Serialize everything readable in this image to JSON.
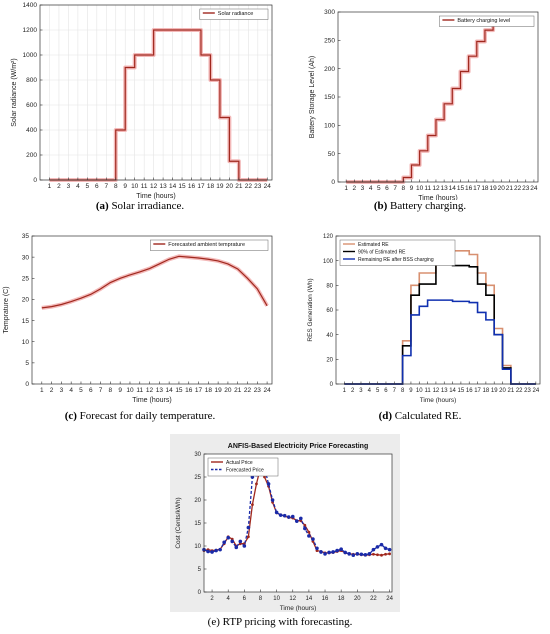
{
  "captions": [
    {
      "letter": "(a)",
      "text": "Solar irradiance."
    },
    {
      "letter": "(b)",
      "text": "Battery charging."
    },
    {
      "letter": "(c)",
      "text": "Forecast for daily temperature."
    },
    {
      "letter": "(d)",
      "text": "Calculated RE."
    },
    {
      "letter": "(e)",
      "text": "RTP pricing with forecasting."
    }
  ],
  "chart_data": [
    {
      "id": "a",
      "type": "line",
      "step": true,
      "title": "",
      "xlabel": "Time (hours)",
      "ylabel": "Solar radiance (W/m²)",
      "xlim": [
        0,
        24.5
      ],
      "ylim": [
        0,
        1400
      ],
      "xticks": [
        1,
        2,
        3,
        4,
        5,
        6,
        7,
        8,
        9,
        10,
        11,
        12,
        13,
        14,
        15,
        16,
        17,
        18,
        19,
        20,
        21,
        22,
        23,
        24
      ],
      "yticks": [
        0,
        200,
        400,
        600,
        800,
        1000,
        1200,
        1400
      ],
      "grid": true,
      "legend_position": "top-right",
      "colors": {
        "series": "#a0281e",
        "halo": "#f3b9b9",
        "background": "#ffffff"
      },
      "series": [
        {
          "name": "Solar radiance",
          "x": [
            1,
            2,
            3,
            4,
            5,
            6,
            7,
            8,
            9,
            10,
            11,
            12,
            13,
            14,
            15,
            16,
            17,
            18,
            19,
            20,
            21,
            22,
            23,
            24
          ],
          "values": [
            0,
            0,
            0,
            0,
            0,
            0,
            0,
            400,
            900,
            1000,
            1000,
            1200,
            1200,
            1200,
            1200,
            1200,
            1000,
            800,
            500,
            150,
            0,
            0,
            0,
            0
          ]
        }
      ]
    },
    {
      "id": "b",
      "type": "line",
      "step": true,
      "title": "",
      "xlabel": "Time (hours)",
      "ylabel": "Battery Storage Level (Ah)",
      "xlim": [
        0,
        24.5
      ],
      "ylim": [
        0,
        300
      ],
      "xticks": [
        1,
        2,
        3,
        4,
        5,
        6,
        7,
        8,
        9,
        10,
        11,
        12,
        13,
        14,
        15,
        16,
        17,
        18,
        19,
        20,
        21,
        22,
        23,
        24
      ],
      "yticks": [
        0,
        50,
        100,
        150,
        200,
        250,
        300
      ],
      "grid": false,
      "legend_position": "top-right",
      "colors": {
        "series": "#a0281e",
        "halo": "#f3b9b9",
        "background": "#ffffff"
      },
      "series": [
        {
          "name": "Battery charging level",
          "x": [
            1,
            2,
            3,
            4,
            5,
            6,
            7,
            8,
            9,
            10,
            11,
            12,
            13,
            14,
            15,
            16,
            17,
            18,
            19,
            20,
            21,
            22,
            23,
            24
          ],
          "values": [
            0,
            0,
            0,
            0,
            0,
            0,
            0,
            8,
            30,
            55,
            82,
            110,
            138,
            165,
            195,
            222,
            248,
            268,
            278,
            278,
            278,
            278,
            278,
            278
          ]
        }
      ]
    },
    {
      "id": "c",
      "type": "line",
      "step": false,
      "title": "",
      "xlabel": "Time (hours)",
      "ylabel": "Temprature (C)",
      "xlim": [
        0,
        24.5
      ],
      "ylim": [
        0,
        35
      ],
      "xticks": [
        1,
        2,
        3,
        4,
        5,
        6,
        7,
        8,
        9,
        10,
        11,
        12,
        13,
        14,
        15,
        16,
        17,
        18,
        19,
        20,
        21,
        22,
        23,
        24
      ],
      "yticks": [
        0,
        5,
        10,
        15,
        20,
        25,
        30,
        35
      ],
      "grid": false,
      "legend_position": "top-right",
      "colors": {
        "series": "#a0281e",
        "halo": "#f3b9b9",
        "background": "#ffffff"
      },
      "series": [
        {
          "name": "Forecasted ambient temprature",
          "x": [
            1,
            2,
            3,
            4,
            5,
            6,
            7,
            8,
            9,
            10,
            11,
            12,
            13,
            14,
            15,
            16,
            17,
            18,
            19,
            20,
            21,
            22,
            23,
            24
          ],
          "values": [
            18,
            18.3,
            18.8,
            19.5,
            20.3,
            21.2,
            22.5,
            24,
            25,
            25.8,
            26.5,
            27.3,
            28.4,
            29.5,
            30.2,
            30,
            29.8,
            29.5,
            29.1,
            28.4,
            27.2,
            25,
            22.5,
            18.5
          ]
        }
      ]
    },
    {
      "id": "d",
      "type": "line",
      "step": true,
      "title": "",
      "xlabel": "Time (hours)",
      "ylabel": "RES Generation (Wh)",
      "xlim": [
        0,
        24.5
      ],
      "ylim": [
        0,
        120
      ],
      "xticks": [
        1,
        2,
        3,
        4,
        5,
        6,
        7,
        8,
        9,
        10,
        11,
        12,
        13,
        14,
        15,
        16,
        17,
        18,
        19,
        20,
        21,
        22,
        23,
        24
      ],
      "yticks": [
        0,
        20,
        40,
        60,
        80,
        100,
        120
      ],
      "grid": false,
      "legend_position": "top-left",
      "colors": {
        "background": "#ffffff"
      },
      "series": [
        {
          "name": "Estimated RE",
          "color": "#d89070",
          "x": [
            1,
            2,
            3,
            4,
            5,
            6,
            7,
            8,
            9,
            10,
            11,
            12,
            13,
            14,
            15,
            16,
            17,
            18,
            19,
            20,
            21,
            22,
            23,
            24
          ],
          "values": [
            0,
            0,
            0,
            0,
            0,
            0,
            0,
            35,
            80,
            90,
            90,
            108,
            108,
            108,
            108,
            105,
            90,
            80,
            45,
            15,
            0,
            0,
            0,
            0
          ]
        },
        {
          "name": "90% of Estimated RE",
          "color": "#000000",
          "x": [
            1,
            2,
            3,
            4,
            5,
            6,
            7,
            8,
            9,
            10,
            11,
            12,
            13,
            14,
            15,
            16,
            17,
            18,
            19,
            20,
            21,
            22,
            23,
            24
          ],
          "values": [
            0,
            0,
            0,
            0,
            0,
            0,
            0,
            31,
            72,
            81,
            81,
            97,
            97,
            96,
            96,
            95,
            81,
            72,
            40,
            13,
            0,
            0,
            0,
            0
          ]
        },
        {
          "name": "Remaining RE after BSS charging",
          "color": "#1030b0",
          "x": [
            1,
            2,
            3,
            4,
            5,
            6,
            7,
            8,
            9,
            10,
            11,
            12,
            13,
            14,
            15,
            16,
            17,
            18,
            19,
            20,
            21,
            22,
            23,
            24
          ],
          "values": [
            0,
            0,
            0,
            0,
            0,
            0,
            0,
            23,
            56,
            63,
            68,
            68,
            68,
            67,
            67,
            66,
            58,
            52,
            40,
            12,
            0,
            0,
            0,
            0
          ]
        }
      ]
    },
    {
      "id": "e",
      "type": "line",
      "step": false,
      "title": "ANFIS-Based Electricity Price Forecasting",
      "xlabel": "Time (hours)",
      "ylabel": "Cost (Cents/kWh)",
      "xlim": [
        1,
        24.3
      ],
      "ylim": [
        0,
        30
      ],
      "xticks": [
        2,
        4,
        6,
        8,
        10,
        12,
        14,
        16,
        18,
        20,
        22,
        24
      ],
      "yticks": [
        0,
        5,
        10,
        15,
        20,
        25,
        30
      ],
      "grid": false,
      "legend_position": "top-left",
      "colors": {
        "actual": "#a0281e",
        "forecast": "#1a2aa8",
        "background": "#f0f0f0"
      },
      "series": [
        {
          "name": "Actual Price",
          "color": "#a0281e",
          "dash": false,
          "x": [
            1,
            1.5,
            2,
            2.5,
            3,
            3.5,
            4,
            4.5,
            5,
            5.5,
            6,
            6.5,
            7,
            7.5,
            8,
            8.5,
            9,
            9.5,
            10,
            10.5,
            11,
            11.5,
            12,
            12.5,
            13,
            13.5,
            14,
            14.5,
            15,
            15.5,
            16,
            16.5,
            17,
            17.5,
            18,
            18.5,
            19,
            19.5,
            20,
            20.5,
            21,
            21.5,
            22,
            22.5,
            23,
            23.5,
            24
          ],
          "values": [
            9,
            9.2,
            9,
            9.1,
            9.3,
            10.5,
            12,
            11.5,
            10,
            10.5,
            10.5,
            12,
            19,
            23.5,
            27,
            25,
            23,
            19.5,
            17.2,
            16.8,
            16.5,
            16.2,
            16.1,
            15.5,
            15.5,
            14.5,
            13,
            11,
            9,
            8.8,
            8.5,
            8.5,
            8.6,
            8.8,
            9,
            8.5,
            8.3,
            8.2,
            8.2,
            8.1,
            8,
            8.1,
            8.2,
            8.1,
            8,
            8.2,
            8.3
          ]
        },
        {
          "name": "Forecasted Price",
          "color": "#1a2aa8",
          "dash": true,
          "x": [
            1,
            1.5,
            2,
            2.5,
            3,
            3.5,
            4,
            4.5,
            5,
            5.5,
            6,
            6.5,
            7,
            7.5,
            8,
            8.5,
            9,
            9.5,
            10,
            10.5,
            11,
            11.5,
            12,
            12.5,
            13,
            13.5,
            14,
            14.5,
            15,
            15.5,
            16,
            16.5,
            17,
            17.5,
            18,
            18.5,
            19,
            19.5,
            20,
            20.5,
            21,
            21.5,
            22,
            22.5,
            23,
            23.5,
            24
          ],
          "values": [
            9.2,
            8.8,
            8.7,
            9,
            9.2,
            10.8,
            11.8,
            11,
            9.7,
            11,
            10,
            14,
            25,
            25.5,
            26.5,
            27,
            23.5,
            20,
            17.3,
            16.7,
            16.6,
            16.3,
            16.4,
            15.4,
            16,
            13.8,
            12.2,
            11.5,
            9.5,
            8.7,
            8.3,
            8.6,
            8.7,
            9,
            9.3,
            8.6,
            8.3,
            8,
            8.3,
            8.2,
            8.1,
            8.3,
            9.2,
            9.8,
            10.3,
            9.5,
            9.2
          ]
        }
      ]
    }
  ]
}
